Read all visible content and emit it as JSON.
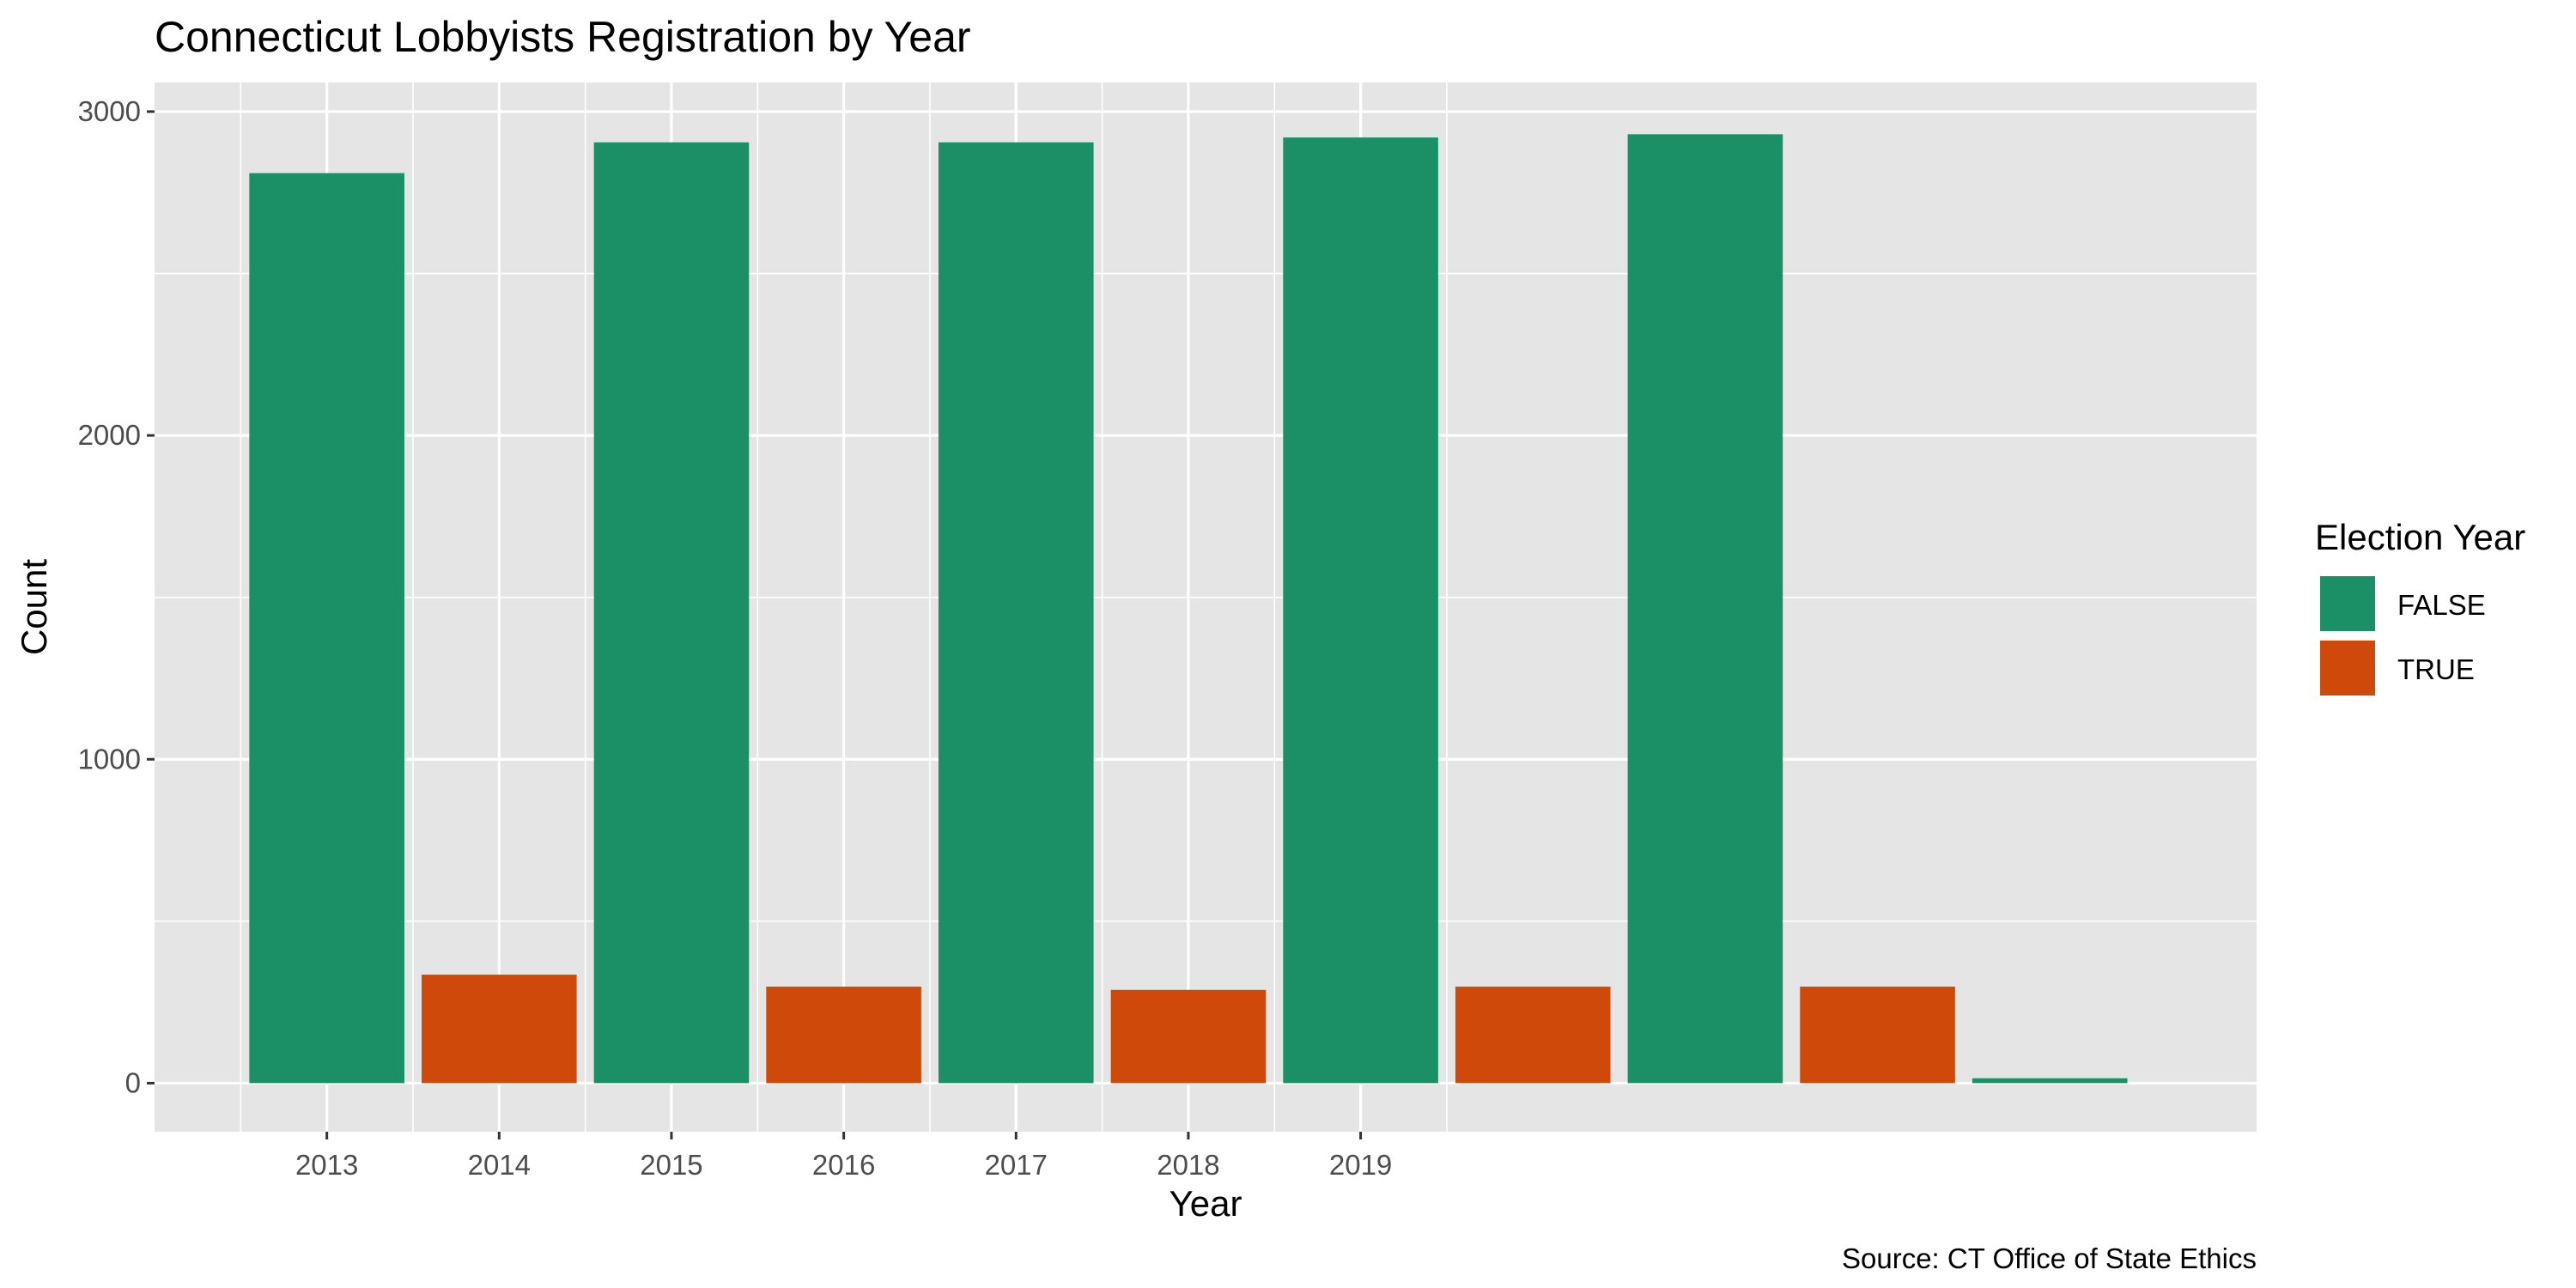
{
  "chart_data": {
    "type": "bar",
    "title": "Connecticut Lobbyists Registration by Year",
    "xlabel": "Year",
    "ylabel": "Count",
    "caption": "Source: CT Office of State Ethics",
    "ylim": [
      -150,
      3090
    ],
    "y_ticks": [
      0,
      1000,
      2000,
      3000
    ],
    "x_tick_labels": [
      "2013",
      "2014",
      "2015",
      "2016",
      "2017",
      "2018",
      "2019"
    ],
    "grid": true,
    "legend": {
      "title": "Election Year",
      "placement": "right",
      "entries": [
        {
          "label": "FALSE",
          "color": "#1b9066"
        },
        {
          "label": "TRUE",
          "color": "#cf4a0a"
        }
      ]
    },
    "bars": [
      {
        "value": 2810,
        "group": "FALSE"
      },
      {
        "value": 335,
        "group": "TRUE"
      },
      {
        "value": 2905,
        "group": "FALSE"
      },
      {
        "value": 298,
        "group": "TRUE"
      },
      {
        "value": 2905,
        "group": "FALSE"
      },
      {
        "value": 288,
        "group": "TRUE"
      },
      {
        "value": 2920,
        "group": "FALSE"
      },
      {
        "value": 298,
        "group": "TRUE"
      },
      {
        "value": 2930,
        "group": "FALSE"
      },
      {
        "value": 298,
        "group": "TRUE"
      },
      {
        "value": 15,
        "group": "FALSE"
      }
    ],
    "colors": {
      "panel_background": "#e5e5e5",
      "gridline": "#ffffff",
      "FALSE": "#1b9066",
      "TRUE": "#cf4a0a"
    }
  }
}
